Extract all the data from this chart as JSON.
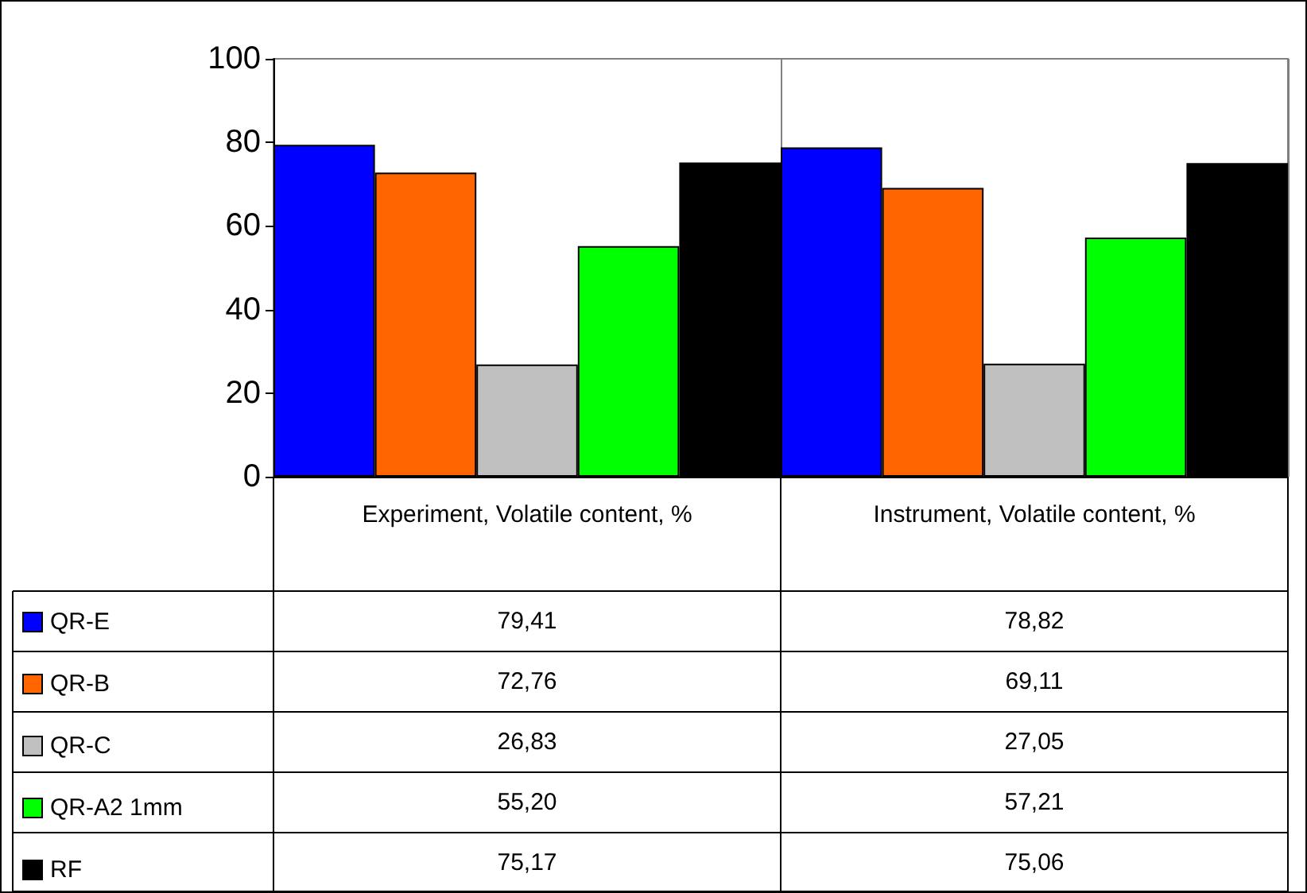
{
  "chart_data": {
    "type": "bar",
    "categories": [
      "Experiment, Volatile content, %",
      "Instrument, Volatile content, %"
    ],
    "series": [
      {
        "name": "QR-E",
        "color": "#0000ff",
        "values": [
          79.41,
          78.82
        ],
        "value_labels": [
          "79,41",
          "78,82"
        ]
      },
      {
        "name": "QR-B",
        "color": "#ff6600",
        "values": [
          72.76,
          69.11
        ],
        "value_labels": [
          "72,76",
          "69,11"
        ]
      },
      {
        "name": "QR-C",
        "color": "#c0c0c0",
        "values": [
          26.83,
          27.05
        ],
        "value_labels": [
          "26,83",
          "27,05"
        ]
      },
      {
        "name": "QR-A2 1mm",
        "color": "#00ff00",
        "values": [
          55.2,
          57.21
        ],
        "value_labels": [
          "55,20",
          "57,21"
        ]
      },
      {
        "name": "RF",
        "color": "#000000",
        "values": [
          75.17,
          75.06
        ],
        "value_labels": [
          "75,17",
          "75,06"
        ]
      }
    ],
    "ylim": [
      0,
      100
    ],
    "yticks": [
      0,
      20,
      40,
      60,
      80,
      100
    ],
    "grid": "x",
    "legend": "bottom left"
  }
}
